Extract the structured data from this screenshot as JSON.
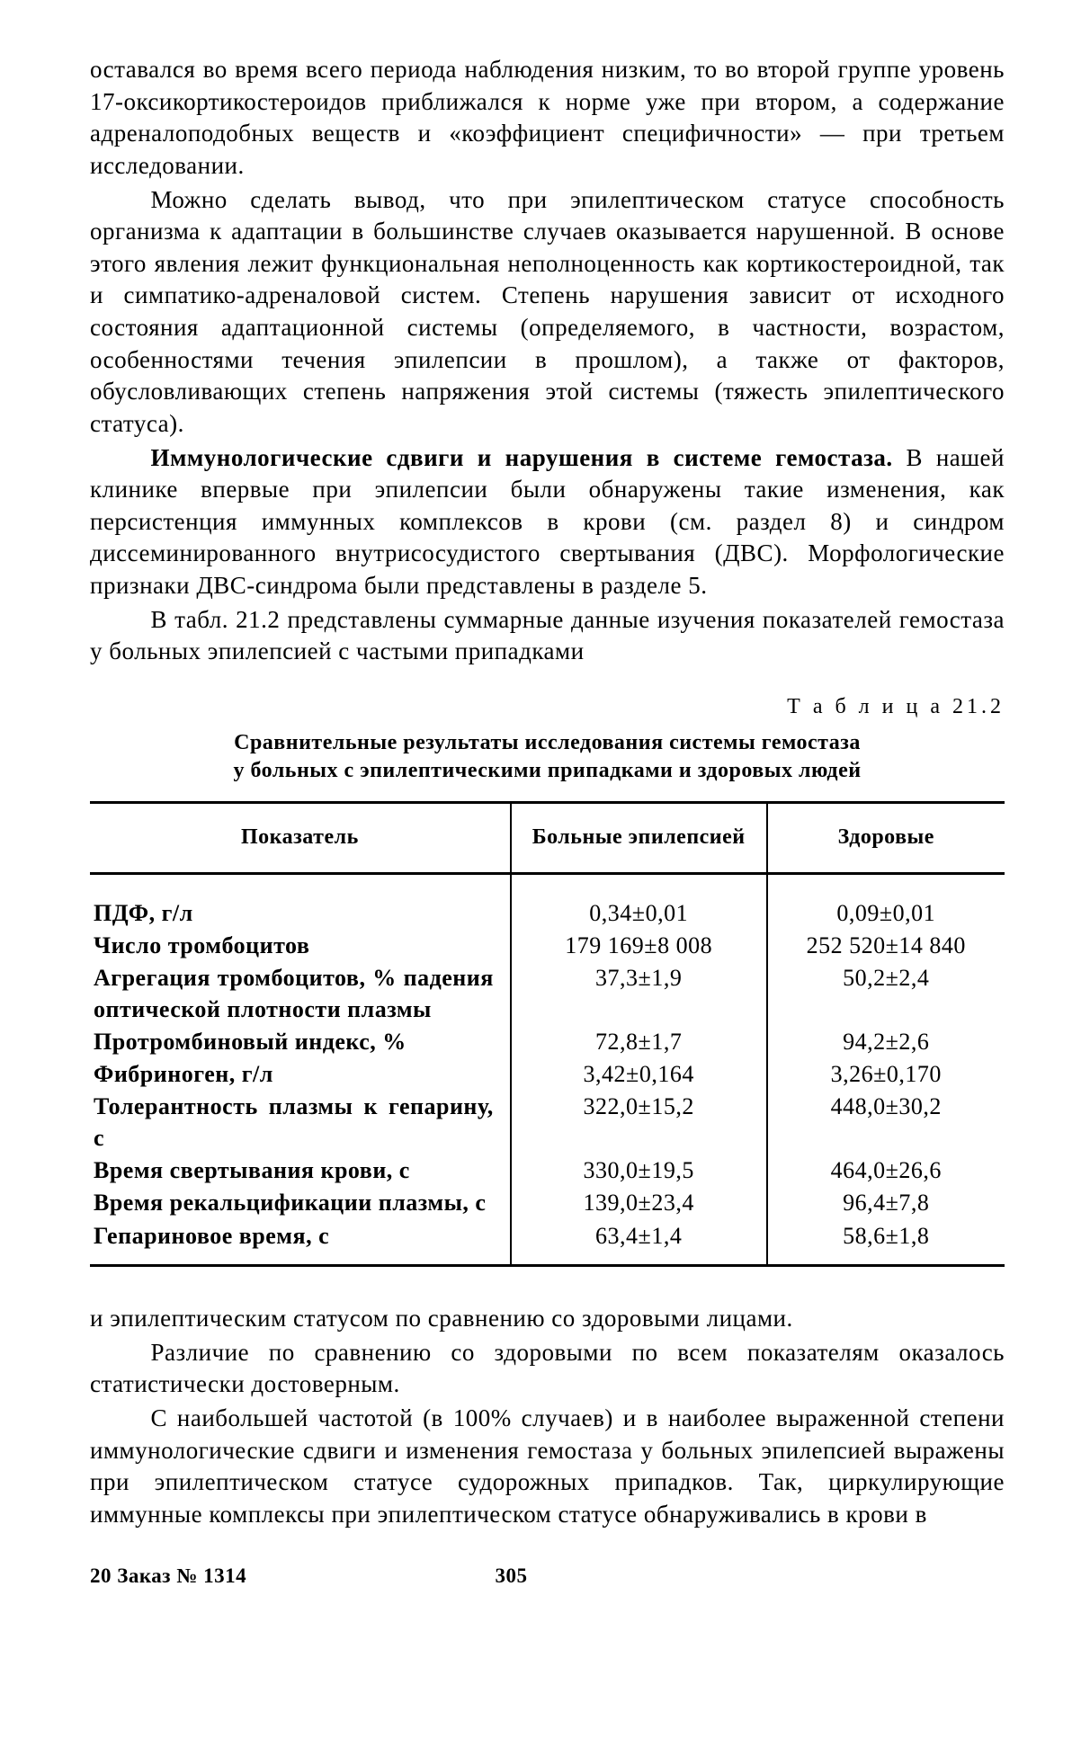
{
  "paragraphs_before": [
    {
      "bold_open": false,
      "text": "оставался во время всего периода наблюдения низким, то во второй группе уровень 17-оксикортикостероидов приближался к норме уже при втором, а содержание адреналоподобных веществ и «коэффициент специфичности» — при третьем исследовании."
    },
    {
      "indent": true,
      "text": "Можно сделать вывод, что при эпилептическом статусе способность организма к адаптации в большинстве случаев оказывается нарушенной. В основе этого явления лежит функциональная неполноценность как кортикостероидной, так и симпатико-адреналовой систем. Степень нарушения зависит от исходного состояния адаптационной системы (определяемого, в частности, возрастом, особенностями течения эпилепсии в прошлом), а также от факторов, обусловливающих степень напряжения этой системы (тяжесть эпилептического статуса)."
    },
    {
      "indent": true,
      "bold_lead": "Иммунологические сдвиги и нарушения в системе гемостаза.",
      "text": " В нашей клинике впервые при эпилепсии были обнаружены такие изменения, как персистенция иммунных комплексов в крови (см. раздел 8) и синдром диссеминированного внутрисосудистого свертывания (ДВС). Морфологические признаки ДВС-синдрома были представлены в разделе 5."
    },
    {
      "indent": true,
      "text": "В табл. 21.2 представлены суммарные данные изучения показателей гемостаза у больных эпилепсией с частыми припадками"
    }
  ],
  "table": {
    "label": "Т а б л и ц а  21.2",
    "caption_lines": [
      "Сравнительные результаты исследования системы гемостаза",
      "у больных с эпилептическими припадками и здоровых людей"
    ],
    "columns": [
      "Показатель",
      "Больные эпилепсией",
      "Здоровые"
    ],
    "col_widths": [
      "46%",
      "28%",
      "26%"
    ],
    "rows": [
      [
        "ПДФ, г/л",
        "0,34±0,01",
        "0,09±0,01"
      ],
      [
        "Число тромбоцитов",
        "179 169±8 008",
        "252 520±14 840"
      ],
      [
        "Агрегация тромбоцитов, % падения оптической плотности плазмы",
        "37,3±1,9",
        "50,2±2,4"
      ],
      [
        "Протромбиновый индекс, %",
        "72,8±1,7",
        "94,2±2,6"
      ],
      [
        "Фибриноген, г/л",
        "3,42±0,164",
        "3,26±0,170"
      ],
      [
        "Толерантность плазмы к гепарину, с",
        "322,0±15,2",
        "448,0±30,2"
      ],
      [
        "Время свертывания крови, с",
        "330,0±19,5",
        "464,0±26,6"
      ],
      [
        "Время рекальцификации плазмы, с",
        "139,0±23,4",
        "96,4±7,8"
      ],
      [
        "Гепариновое время, с",
        "63,4±1,4",
        "58,6±1,8"
      ]
    ]
  },
  "paragraphs_after": [
    {
      "text": "и эпилептическим статусом по сравнению со здоровыми лицами."
    },
    {
      "indent": true,
      "text": "Различие по сравнению со здоровыми по всем показателям оказалось статистически достоверным."
    },
    {
      "indent": true,
      "text": "С наибольшей частотой (в 100% случаев) и в наиболее выраженной степени иммунологические сдвиги и изменения гемостаза у больных эпилепсией выражены при эпилептическом статусе судорожных припадков. Так, циркулирующие иммунные комплексы при эпилептическом статусе обнаруживались в крови в"
    }
  ],
  "footer": {
    "left": "20 Заказ № 1314",
    "page": "305"
  }
}
